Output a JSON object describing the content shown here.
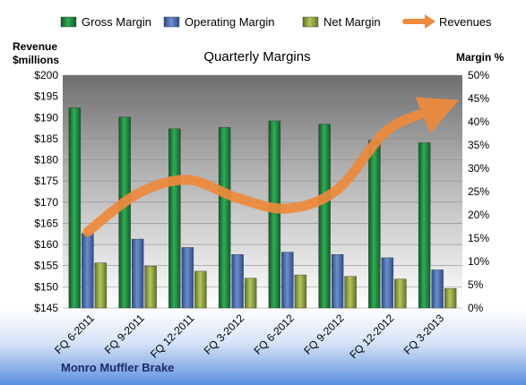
{
  "chart_data": {
    "type": "bar",
    "title": "Quarterly Margins",
    "left_axis_label": [
      "Revenue",
      "$millions"
    ],
    "right_axis_label": "Margin %",
    "categories": [
      "FQ 6-2011",
      "FQ 9-2011",
      "FQ 12-2011",
      "FQ 3-2012",
      "FQ 6-2012",
      "FQ 9-2012",
      "FQ 12-2012",
      "FQ 3-2013"
    ],
    "series": [
      {
        "name": "Gross Margin",
        "type": "bar",
        "axis": "right",
        "color": "#1b8a3e",
        "values": [
          43,
          41,
          38.5,
          38.8,
          40.2,
          39.5,
          36,
          35.5
        ]
      },
      {
        "name": "Operating Margin",
        "type": "bar",
        "axis": "right",
        "color": "#4a6fb0",
        "values": [
          16,
          14.8,
          13,
          11.5,
          12,
          11.5,
          10.8,
          8.2
        ]
      },
      {
        "name": "Net Margin",
        "type": "bar",
        "axis": "right",
        "color": "#93a83c",
        "values": [
          9.7,
          9,
          7.9,
          6.4,
          7.1,
          6.8,
          6.2,
          4.2
        ]
      },
      {
        "name": "Revenues",
        "type": "line",
        "axis": "left",
        "color": "#ee8a3c",
        "values": [
          163,
          172,
          175.3,
          171,
          168.5,
          173,
          187,
          192
        ]
      }
    ],
    "left_ylim": [
      145,
      200
    ],
    "left_ticks": [
      "$145",
      "$150",
      "$155",
      "$160",
      "$165",
      "$170",
      "$175",
      "$180",
      "$185",
      "$190",
      "$195",
      "$200"
    ],
    "right_ylim": [
      0,
      50
    ],
    "right_ticks": [
      "0%",
      "5%",
      "10%",
      "15%",
      "20%",
      "25%",
      "30%",
      "35%",
      "40%",
      "45%",
      "50%"
    ],
    "legend_position": "top",
    "grid": true
  },
  "footer": {
    "company": "Monro Muffler Brake"
  },
  "colors": {
    "plot_top": "#6e6e6e",
    "plot_bottom": "#ffffff",
    "footer_blue": "#5b8fde"
  }
}
